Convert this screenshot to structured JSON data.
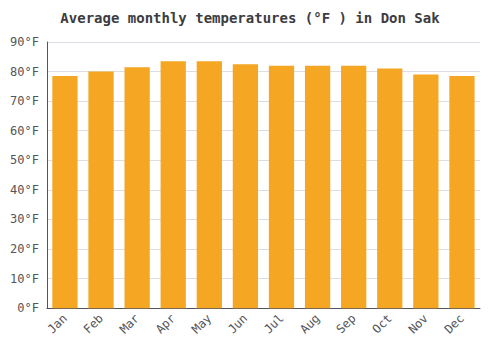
{
  "chart_data": {
    "type": "bar",
    "title": "Average monthly temperatures (°F ) in Don Sak",
    "categories": [
      "Jan",
      "Feb",
      "Mar",
      "Apr",
      "May",
      "Jun",
      "Jul",
      "Aug",
      "Sep",
      "Oct",
      "Nov",
      "Dec"
    ],
    "values": [
      78.5,
      80.0,
      81.5,
      83.5,
      83.5,
      82.5,
      82.0,
      82.0,
      82.0,
      81.0,
      79.0,
      78.5
    ],
    "color": "#F5A623",
    "ylim": [
      0,
      90
    ],
    "yticks": [
      {
        "value": 0,
        "label": "0°F"
      },
      {
        "value": 10,
        "label": "10°F"
      },
      {
        "value": 20,
        "label": "20°F"
      },
      {
        "value": 30,
        "label": "30°F"
      },
      {
        "value": 40,
        "label": "40°F"
      },
      {
        "value": 50,
        "label": "50°F"
      },
      {
        "value": 60,
        "label": "60°F"
      },
      {
        "value": 70,
        "label": "70°F"
      },
      {
        "value": 80,
        "label": "80°F"
      },
      {
        "value": 90,
        "label": "90°F"
      }
    ],
    "grid": true
  }
}
